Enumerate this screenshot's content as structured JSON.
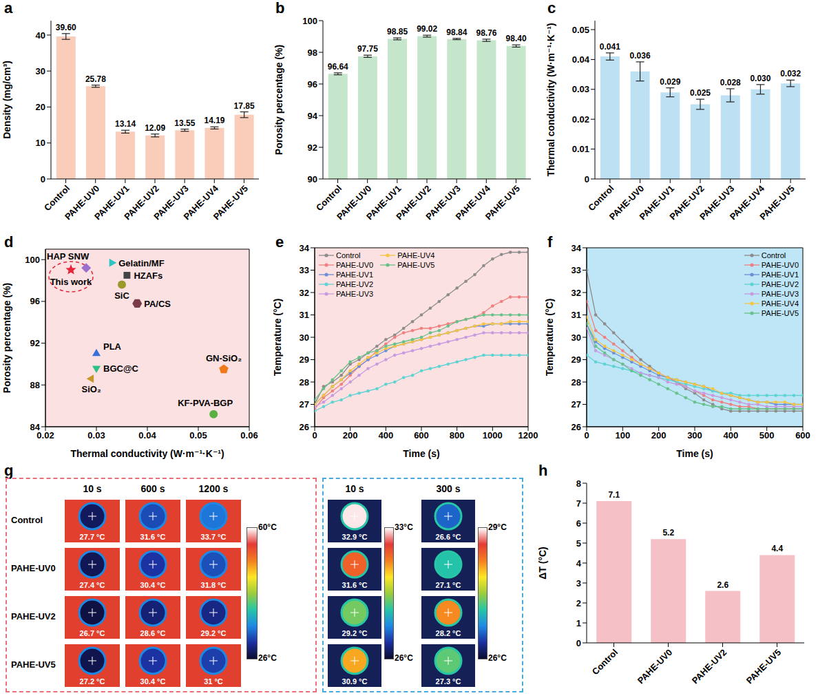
{
  "chart_data": [
    {
      "panel": "a",
      "type": "bar",
      "y_label": "Density (mg/cm³)",
      "categories": [
        "Control",
        "PAHE-UV0",
        "PAHE-UV1",
        "PAHE-UV2",
        "PAHE-UV3",
        "PAHE-UV4",
        "PAHE-UV5"
      ],
      "values": [
        39.6,
        25.78,
        13.14,
        12.09,
        13.55,
        14.19,
        17.85
      ],
      "value_labels": [
        "39.60",
        "25.78",
        "13.14",
        "12.09",
        "13.55",
        "14.19",
        "17.85"
      ],
      "errors": [
        0.8,
        0.3,
        0.4,
        0.4,
        0.3,
        0.3,
        0.8
      ],
      "color": "#f9cdb9",
      "ylim": [
        0,
        44
      ],
      "yticks": [
        0,
        10,
        20,
        30,
        40
      ],
      "data_labels": true
    },
    {
      "panel": "b",
      "type": "bar",
      "y_label": "Porosity percentage (%)",
      "categories": [
        "Control",
        "PAHE-UV0",
        "PAHE-UV1",
        "PAHE-UV2",
        "PAHE-UV3",
        "PAHE-UV4",
        "PAHE-UV5"
      ],
      "values": [
        96.64,
        97.75,
        98.85,
        99.02,
        98.84,
        98.76,
        98.4
      ],
      "value_labels": [
        "96.64",
        "97.75",
        "98.85",
        "99.02",
        "98.84",
        "98.76",
        "98.40"
      ],
      "errors": [
        0.06,
        0.07,
        0.06,
        0.06,
        0.04,
        0.07,
        0.07
      ],
      "color": "#c6e6cc",
      "ylim": [
        90,
        100
      ],
      "yticks": [
        90,
        92,
        94,
        96,
        98,
        100
      ],
      "data_labels": true
    },
    {
      "panel": "c",
      "type": "bar",
      "y_label": "Thermal conductivity (W·m⁻¹·K⁻¹)",
      "categories": [
        "Control",
        "PAHE-UV0",
        "PAHE-UV1",
        "PAHE-UV2",
        "PAHE-UV3",
        "PAHE-UV4",
        "PAHE-UV5"
      ],
      "values": [
        0.041,
        0.036,
        0.029,
        0.025,
        0.028,
        0.03,
        0.032
      ],
      "value_labels": [
        "0.041",
        "0.036",
        "0.029",
        "0.025",
        "0.028",
        "0.030",
        "0.032"
      ],
      "errors": [
        0.0012,
        0.0032,
        0.0015,
        0.0017,
        0.0022,
        0.0016,
        0.0011
      ],
      "color": "#bde0f3",
      "ylim": [
        0,
        0.053
      ],
      "yticks": [
        0,
        0.01,
        0.02,
        0.03,
        0.04,
        0.05
      ],
      "data_labels": true
    },
    {
      "panel": "d",
      "type": "scatter",
      "x_label": "Thermal conductivity (W·m⁻¹·K⁻¹)",
      "y_label": "Porosity percentage (%)",
      "xlim": [
        0.02,
        0.06
      ],
      "xticks": [
        0.02,
        0.03,
        0.04,
        0.05,
        0.06
      ],
      "ylim": [
        84,
        101
      ],
      "yticks": [
        84,
        88,
        92,
        96,
        100
      ],
      "series": [
        {
          "name": "This work",
          "color": "#e8253a",
          "marker": "star",
          "x": [
            0.025
          ],
          "y": [
            99.02
          ]
        },
        {
          "name": "HAP SNW",
          "color": "#9b6fd0",
          "marker": "diamond",
          "x": [
            0.028
          ],
          "y": [
            99.2
          ]
        },
        {
          "name": "Gelatin/MF",
          "color": "#2ec4c4",
          "marker": "triangle-right",
          "x": [
            0.033
          ],
          "y": [
            99.7
          ]
        },
        {
          "name": "HZAFs",
          "color": "#444444",
          "marker": "square",
          "x": [
            0.036
          ],
          "y": [
            98.5
          ]
        },
        {
          "name": "SiC",
          "color": "#9a9a2a",
          "marker": "circle",
          "x": [
            0.035
          ],
          "y": [
            97.6
          ]
        },
        {
          "name": "PA/CS",
          "color": "#7a3a4a",
          "marker": "hexagon",
          "x": [
            0.038
          ],
          "y": [
            95.8
          ]
        },
        {
          "name": "PLA",
          "color": "#3a6fd8",
          "marker": "triangle",
          "x": [
            0.03
          ],
          "y": [
            91.0
          ]
        },
        {
          "name": "BGC@C",
          "color": "#2fbf8a",
          "marker": "triangle-down",
          "x": [
            0.03
          ],
          "y": [
            89.6
          ]
        },
        {
          "name": "SiO₂",
          "color": "#c8962a",
          "marker": "triangle-left",
          "x": [
            0.029
          ],
          "y": [
            88.6
          ]
        },
        {
          "name": "GN-SiO₂",
          "color": "#f07a1a",
          "marker": "pentagon",
          "x": [
            0.055
          ],
          "y": [
            89.5
          ]
        },
        {
          "name": "KF-PVA-BGP",
          "color": "#5ab040",
          "marker": "circle",
          "x": [
            0.053
          ],
          "y": [
            85.2
          ]
        }
      ]
    },
    {
      "panel": "e",
      "type": "line",
      "x_label": "Time (s)",
      "y_label": "Temperature (°C)",
      "xlim": [
        0,
        1200
      ],
      "xticks": [
        0,
        200,
        400,
        600,
        800,
        1000,
        1200
      ],
      "ylim": [
        26,
        34
      ],
      "yticks": [
        26,
        27,
        28,
        29,
        30,
        31,
        32,
        33,
        34
      ],
      "legend": "upper left",
      "marker": "circle",
      "x": [
        0,
        50,
        100,
        150,
        200,
        250,
        300,
        350,
        400,
        450,
        500,
        550,
        600,
        650,
        700,
        750,
        800,
        850,
        900,
        950,
        1000,
        1050,
        1100,
        1150,
        1200
      ],
      "series": [
        {
          "name": "Control",
          "color": "#8c8c8c",
          "values": [
            27.0,
            27.8,
            28.0,
            28.3,
            28.8,
            29.0,
            29.3,
            29.6,
            29.9,
            30.1,
            30.4,
            30.7,
            31.0,
            31.3,
            31.6,
            31.9,
            32.2,
            32.5,
            32.8,
            33.2,
            33.5,
            33.7,
            33.8,
            33.8,
            33.8
          ]
        },
        {
          "name": "PAHE-UV0",
          "color": "#f08080",
          "values": [
            26.8,
            27.3,
            27.6,
            27.9,
            28.3,
            28.7,
            29.0,
            29.4,
            29.7,
            30.0,
            30.2,
            30.3,
            30.4,
            30.4,
            30.5,
            30.6,
            30.7,
            30.8,
            30.9,
            31.1,
            31.4,
            31.6,
            31.8,
            31.8,
            31.8
          ]
        },
        {
          "name": "PAHE-UV1",
          "color": "#6b8fd6",
          "values": [
            27.0,
            27.4,
            27.8,
            28.1,
            28.4,
            28.7,
            29.0,
            29.2,
            29.4,
            29.6,
            29.7,
            29.8,
            29.9,
            30.0,
            30.1,
            30.2,
            30.3,
            30.4,
            30.5,
            30.5,
            30.6,
            30.6,
            30.6,
            30.6,
            30.6
          ]
        },
        {
          "name": "PAHE-UV2",
          "color": "#5fd3d3",
          "values": [
            26.7,
            26.9,
            27.1,
            27.2,
            27.4,
            27.5,
            27.6,
            27.7,
            27.9,
            28.0,
            28.2,
            28.3,
            28.5,
            28.6,
            28.7,
            28.8,
            28.9,
            29.0,
            29.1,
            29.2,
            29.2,
            29.2,
            29.2,
            29.2,
            29.2
          ]
        },
        {
          "name": "PAHE-UV3",
          "color": "#c89be0",
          "values": [
            26.9,
            27.1,
            27.4,
            27.7,
            28.0,
            28.3,
            28.6,
            28.8,
            29.0,
            29.2,
            29.3,
            29.4,
            29.5,
            29.6,
            29.7,
            29.8,
            29.9,
            30.0,
            30.1,
            30.2,
            30.2,
            30.2,
            30.2,
            30.2,
            30.2
          ]
        },
        {
          "name": "PAHE-UV4",
          "color": "#f5c542",
          "values": [
            27.0,
            27.4,
            27.8,
            28.1,
            28.5,
            28.8,
            29.1,
            29.3,
            29.5,
            29.6,
            29.7,
            29.8,
            29.9,
            30.0,
            30.1,
            30.2,
            30.3,
            30.4,
            30.5,
            30.6,
            30.6,
            30.6,
            30.7,
            30.7,
            30.7
          ]
        },
        {
          "name": "PAHE-UV5",
          "color": "#66c28a",
          "values": [
            27.2,
            27.7,
            28.1,
            28.5,
            28.9,
            29.1,
            29.3,
            29.4,
            29.6,
            29.7,
            29.8,
            29.9,
            30.0,
            30.2,
            30.3,
            30.5,
            30.7,
            30.8,
            30.9,
            31.0,
            31.0,
            31.0,
            31.0,
            31.0,
            31.0
          ]
        }
      ]
    },
    {
      "panel": "f",
      "type": "line",
      "x_label": "Time (s)",
      "y_label": "Temperature (°C)",
      "xlim": [
        0,
        600
      ],
      "xticks": [
        0,
        100,
        200,
        300,
        400,
        500,
        600
      ],
      "ylim": [
        26,
        34
      ],
      "yticks": [
        26,
        27,
        28,
        29,
        30,
        31,
        32,
        33,
        34
      ],
      "legend": "upper right",
      "marker": "circle",
      "x": [
        0,
        25,
        50,
        75,
        100,
        125,
        150,
        175,
        200,
        225,
        250,
        275,
        300,
        325,
        350,
        375,
        400,
        425,
        450,
        475,
        500,
        525,
        550,
        575,
        600
      ],
      "series": [
        {
          "name": "Control",
          "color": "#8c8c8c",
          "values": [
            33.0,
            31.0,
            30.6,
            30.2,
            29.8,
            29.4,
            29.0,
            28.7,
            28.4,
            28.2,
            28.0,
            27.7,
            27.5,
            27.2,
            27.0,
            26.8,
            26.7,
            26.7,
            26.7,
            26.7,
            26.7,
            26.7,
            26.7,
            26.7,
            26.7
          ]
        },
        {
          "name": "PAHE-UV0",
          "color": "#f08080",
          "values": [
            31.6,
            30.3,
            30.0,
            29.7,
            29.4,
            29.1,
            28.8,
            28.6,
            28.4,
            28.2,
            28.0,
            27.8,
            27.6,
            27.4,
            27.2,
            27.1,
            27.0,
            26.9,
            26.9,
            26.8,
            26.8,
            26.8,
            26.8,
            26.8,
            26.8
          ]
        },
        {
          "name": "PAHE-UV1",
          "color": "#6b8fd6",
          "values": [
            30.6,
            29.8,
            29.5,
            29.3,
            29.1,
            28.9,
            28.7,
            28.5,
            28.3,
            28.2,
            28.1,
            28.0,
            27.9,
            27.8,
            27.6,
            27.5,
            27.4,
            27.3,
            27.2,
            27.1,
            27.1,
            27.0,
            27.0,
            27.0,
            27.0
          ]
        },
        {
          "name": "PAHE-UV2",
          "color": "#5fd3d3",
          "values": [
            29.2,
            28.9,
            28.8,
            28.7,
            28.6,
            28.5,
            28.4,
            28.3,
            28.2,
            28.1,
            28.0,
            27.9,
            27.8,
            27.7,
            27.6,
            27.5,
            27.5,
            27.4,
            27.4,
            27.4,
            27.4,
            27.4,
            27.4,
            27.4,
            27.4
          ]
        },
        {
          "name": "PAHE-UV3",
          "color": "#c89be0",
          "values": [
            30.4,
            29.4,
            29.2,
            29.0,
            28.8,
            28.6,
            28.4,
            28.3,
            28.2,
            28.0,
            27.9,
            27.8,
            27.6,
            27.5,
            27.4,
            27.3,
            27.2,
            27.1,
            27.0,
            27.0,
            26.9,
            26.9,
            26.9,
            26.9,
            26.9
          ]
        },
        {
          "name": "PAHE-UV4",
          "color": "#f5c542",
          "values": [
            30.9,
            29.9,
            29.6,
            29.4,
            29.2,
            29.0,
            28.8,
            28.6,
            28.4,
            28.2,
            28.1,
            28.0,
            27.9,
            27.8,
            27.7,
            27.5,
            27.4,
            27.3,
            27.2,
            27.1,
            27.1,
            27.1,
            27.1,
            27.0,
            27.0
          ]
        },
        {
          "name": "PAHE-UV5",
          "color": "#66c28a",
          "values": [
            30.6,
            29.6,
            29.3,
            29.0,
            28.8,
            28.5,
            28.3,
            28.1,
            27.9,
            27.7,
            27.5,
            27.3,
            27.1,
            27.0,
            26.9,
            26.9,
            26.8,
            26.8,
            26.8,
            26.8,
            26.8,
            26.8,
            26.8,
            26.8,
            26.8
          ]
        }
      ]
    },
    {
      "panel": "g",
      "type": "thermal_images",
      "samples": [
        "Control",
        "PAHE-UV0",
        "PAHE-UV2",
        "PAHE-UV5"
      ],
      "heating": {
        "times": [
          "10 s",
          "600 s",
          "1200 s"
        ],
        "temperatures": [
          [
            27.7,
            31.6,
            33.7
          ],
          [
            27.4,
            30.4,
            31.8
          ],
          [
            26.7,
            28.6,
            29.2
          ],
          [
            27.2,
            30.4,
            31
          ]
        ],
        "temperature_labels": [
          [
            "27.7 °C",
            "31.6 °C",
            "33.7 °C"
          ],
          [
            "27.4 °C",
            "30.4 °C",
            "31.8 °C"
          ],
          [
            "26.7 °C",
            "28.6 °C",
            "29.2 °C"
          ],
          [
            "27.2 °C",
            "30.4 °C",
            "31 °C"
          ]
        ],
        "colorbar": {
          "range": [
            26,
            60
          ],
          "ticks": [
            {
              "value": 60,
              "label": "60°C"
            },
            {
              "value": 26,
              "label": "26°C"
            }
          ]
        }
      },
      "cooling": {
        "times": [
          "10 s",
          "300 s"
        ],
        "temperatures": [
          [
            32.9,
            26.6
          ],
          [
            31.6,
            27.1
          ],
          [
            29.2,
            28.2
          ],
          [
            30.9,
            27.3
          ]
        ],
        "temperature_labels": [
          [
            "32.9 °C",
            "26.6 °C"
          ],
          [
            "31.6 °C",
            "27.1 °C"
          ],
          [
            "29.2 °C",
            "28.2 °C"
          ],
          [
            "30.9 °C",
            "27.3 °C"
          ]
        ],
        "colorbars": [
          {
            "range": [
              26,
              33
            ],
            "ticks": [
              {
                "value": 33,
                "label": "33°C"
              },
              {
                "value": 26,
                "label": "26°C"
              }
            ]
          },
          {
            "range": [
              26,
              29
            ],
            "ticks": [
              {
                "value": 29,
                "label": "29°C"
              },
              {
                "value": 26,
                "label": "26°C"
              }
            ]
          }
        ]
      }
    },
    {
      "panel": "h",
      "type": "bar",
      "y_label": "ΔT (°C)",
      "categories": [
        "Control",
        "PAHE-UV0",
        "PAHE-UV2",
        "PAHE-UV5"
      ],
      "values": [
        7.1,
        5.2,
        2.6,
        4.4
      ],
      "color": "#f5c1c7",
      "ylim": [
        0,
        8
      ],
      "yticks": [
        0,
        1,
        2,
        3,
        4,
        5,
        6,
        7,
        8
      ],
      "data_labels": true
    }
  ]
}
